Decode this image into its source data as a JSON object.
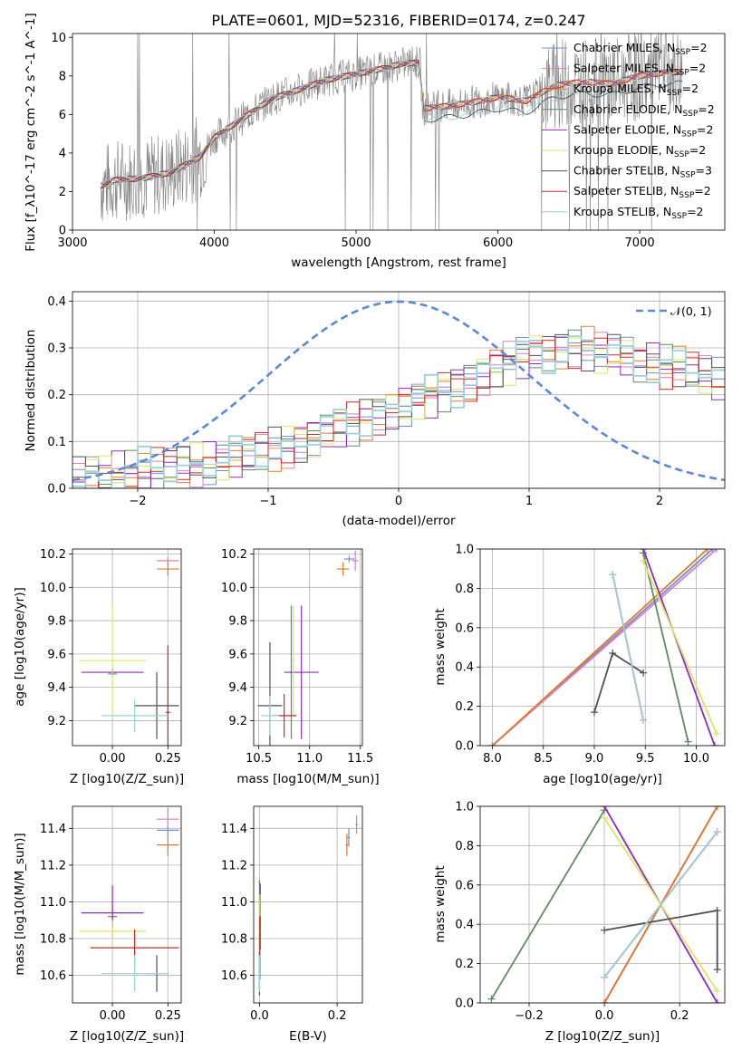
{
  "figure": {
    "title": "PLATE=0601, MJD=52316, FIBERID=0174, z=0.247"
  },
  "colors": {
    "Chabrier MILES": "#6f8fd6",
    "Salpeter MILES": "#d77fc4",
    "Kroupa MILES": "#e07b2a",
    "Chabrier ELODIE": "#5f8a63",
    "Salpeter ELODIE": "#8e2bbd",
    "Kroupa ELODIE": "#dbe565",
    "Chabrier STELIB": "#505050",
    "Salpeter STELIB": "#c82a2a",
    "Kroupa STELIB": "#9ed0dc",
    "gaussian": "#5b87d8"
  },
  "chart_data": [
    {
      "panel": "spectrum",
      "type": "line",
      "xlabel": "wavelength [Angstrom, rest frame]",
      "ylabel": "Flux [f_λ10^-17 erg cm^-2 s^-1 A^-1]",
      "xlim": [
        3000,
        7600
      ],
      "ylim": [
        0,
        10.2
      ],
      "xticks": [
        3000,
        4000,
        5000,
        6000,
        7000
      ],
      "yticks": [
        0,
        2,
        4,
        6,
        8,
        10
      ],
      "grid": false,
      "legend_position": "top-right",
      "legend": [
        {
          "name": "Chabrier MILES",
          "nssp": "2"
        },
        {
          "name": "Salpeter MILES",
          "nssp": "2"
        },
        {
          "name": "Kroupa MILES",
          "nssp": "2"
        },
        {
          "name": "Chabrier ELODIE",
          "nssp": "2"
        },
        {
          "name": "Salpeter ELODIE",
          "nssp": "2"
        },
        {
          "name": "Kroupa ELODIE",
          "nssp": "2"
        },
        {
          "name": "Chabrier STELIB",
          "nssp": "3"
        },
        {
          "name": "Salpeter STELIB",
          "nssp": "2"
        },
        {
          "name": "Kroupa STELIB",
          "nssp": "2"
        }
      ],
      "data_profile": {
        "x": [
          3200,
          3300,
          3500,
          3700,
          3900,
          4000,
          4200,
          4400,
          4600,
          4800,
          5000,
          5200,
          5300,
          5450,
          5470,
          5600,
          5800,
          6000,
          6200,
          6400,
          6600,
          6800,
          7000,
          7200
        ],
        "y": [
          2.3,
          2.6,
          2.7,
          3.0,
          3.8,
          4.8,
          5.8,
          6.8,
          7.3,
          7.8,
          8.1,
          8.4,
          8.6,
          8.7,
          6.3,
          6.4,
          6.6,
          6.9,
          6.7,
          7.5,
          7.7,
          7.6,
          8.0,
          8.2
        ]
      },
      "model_offset_low_group": -0.6
    },
    {
      "panel": "residual-histogram",
      "type": "line",
      "xlabel": "(data-model)/error",
      "ylabel": "Normed distribution",
      "xlim": [
        -2.5,
        2.5
      ],
      "ylim": [
        0,
        0.42
      ],
      "xticks": [
        -2,
        -1,
        0,
        1,
        2
      ],
      "yticks": [
        0.0,
        0.1,
        0.2,
        0.3,
        0.4
      ],
      "grid": true,
      "legend_position": "top-right",
      "legend_label": "N(0,1)",
      "bin_width": 0.1,
      "base_profile": [
        0.02,
        0.025,
        0.03,
        0.032,
        0.035,
        0.04,
        0.04,
        0.045,
        0.05,
        0.05,
        0.055,
        0.06,
        0.065,
        0.07,
        0.08,
        0.085,
        0.09,
        0.1,
        0.11,
        0.12,
        0.13,
        0.14,
        0.15,
        0.16,
        0.17,
        0.18,
        0.19,
        0.2,
        0.21,
        0.22,
        0.23,
        0.245,
        0.26,
        0.27,
        0.28,
        0.29,
        0.29,
        0.3,
        0.3,
        0.3,
        0.29,
        0.29,
        0.28,
        0.27,
        0.27,
        0.26,
        0.26,
        0.25,
        0.24,
        0.23,
        0.22
      ]
    },
    {
      "panel": "age-vs-Z",
      "type": "scatter",
      "xlabel": "Z [log10(Z/Z_sun)]",
      "ylabel": "age [log10(age/yr)]",
      "xlim": [
        -0.18,
        0.31
      ],
      "ylim": [
        9.05,
        10.23
      ],
      "xticks": [
        0.0,
        0.25
      ],
      "yticks": [
        9.2,
        9.4,
        9.6,
        9.8,
        10.0,
        10.2
      ],
      "grid": true,
      "points": [
        {
          "model": "Chabrier MILES",
          "x": 0.0,
          "y": 9.48,
          "xerr": 0.02,
          "yerr": 0.01
        },
        {
          "model": "Salpeter MILES",
          "x": 0.25,
          "y": 10.16,
          "xerr": 0.05,
          "yerr": 0.02
        },
        {
          "model": "Kroupa MILES",
          "x": 0.25,
          "y": 10.11,
          "xerr": 0.05,
          "yerr": 0.04
        },
        {
          "model": "Chabrier ELODIE",
          "x": 0.0,
          "y": 9.49,
          "xerr": 0.02,
          "yerr": 0.03
        },
        {
          "model": "Salpeter ELODIE",
          "x": 0.0,
          "y": 9.49,
          "xerr": 0.14,
          "yerr": 0.02
        },
        {
          "model": "Kroupa ELODIE",
          "x": 0.0,
          "y": 9.56,
          "xerr": 0.15,
          "yerr": 0.33
        },
        {
          "model": "Chabrier STELIB",
          "x": 0.2,
          "y": 9.29,
          "xerr": 0.1,
          "yerr": 0.2
        },
        {
          "model": "Salpeter STELIB",
          "x": 0.25,
          "y": 9.25,
          "xerr": 0.01,
          "yerr": 0.4
        },
        {
          "model": "Kroupa STELIB",
          "x": 0.1,
          "y": 9.23,
          "xerr": 0.15,
          "yerr": 0.1
        }
      ]
    },
    {
      "panel": "age-vs-mass",
      "type": "scatter",
      "xlabel": "mass [log10(M/M_sun)]",
      "ylabel": "",
      "xlim": [
        10.45,
        11.52
      ],
      "ylim": [
        9.05,
        10.23
      ],
      "xticks": [
        10.5,
        11.0,
        11.5
      ],
      "yticks": [
        9.2,
        9.4,
        9.6,
        9.8,
        10.0,
        10.2
      ],
      "grid": true,
      "points": [
        {
          "model": "Chabrier MILES",
          "x": 11.39,
          "y": 10.17,
          "xerr": 0.05,
          "yerr": 0.02
        },
        {
          "model": "Salpeter MILES",
          "x": 11.45,
          "y": 10.16,
          "xerr": 0.03,
          "yerr": 0.06
        },
        {
          "model": "Kroupa MILES",
          "x": 11.33,
          "y": 10.11,
          "xerr": 0.06,
          "yerr": 0.04
        },
        {
          "model": "Chabrier ELODIE",
          "x": 10.82,
          "y": 9.49,
          "xerr": 0.01,
          "yerr": 0.4
        },
        {
          "model": "Salpeter ELODIE",
          "x": 10.92,
          "y": 9.49,
          "xerr": 0.17,
          "yerr": 0.4
        },
        {
          "model": "Kroupa ELODIE",
          "x": 10.84,
          "y": 9.56,
          "xerr": 0.01,
          "yerr": 0.33
        },
        {
          "model": "Chabrier STELIB",
          "x": 10.61,
          "y": 9.29,
          "xerr": 0.12,
          "yerr": 0.38
        },
        {
          "model": "Salpeter STELIB",
          "x": 10.75,
          "y": 9.23,
          "xerr": 0.12,
          "yerr": 0.13
        },
        {
          "model": "Kroupa STELIB",
          "x": 10.61,
          "y": 9.23,
          "xerr": 0.09,
          "yerr": 0.12
        }
      ]
    },
    {
      "panel": "mass-weight-vs-age",
      "type": "line",
      "xlabel": "age [log10(age/yr)]",
      "ylabel": "mass weight",
      "xlim": [
        7.88,
        10.28
      ],
      "ylim": [
        0,
        1
      ],
      "xticks": [
        8.0,
        8.5,
        9.0,
        9.5,
        10.0
      ],
      "yticks": [
        0.0,
        0.2,
        0.4,
        0.6,
        0.8,
        1.0
      ],
      "grid": true,
      "series": [
        {
          "model": "Chabrier MILES",
          "x": [
            8.0,
            10.16
          ],
          "y": [
            0.0,
            1.0
          ]
        },
        {
          "model": "Salpeter MILES",
          "x": [
            8.0,
            10.2
          ],
          "y": [
            0.0,
            1.0
          ]
        },
        {
          "model": "Kroupa MILES",
          "x": [
            8.0,
            10.11
          ],
          "y": [
            0.0,
            1.0
          ]
        },
        {
          "model": "Chabrier ELODIE",
          "x": [
            9.48,
            9.92
          ],
          "y": [
            0.98,
            0.02
          ]
        },
        {
          "model": "Salpeter ELODIE",
          "x": [
            9.48,
            10.18
          ],
          "y": [
            1.0,
            0.0
          ]
        },
        {
          "model": "Kroupa ELODIE",
          "x": [
            9.48,
            10.2
          ],
          "y": [
            0.94,
            0.06
          ]
        },
        {
          "model": "Chabrier STELIB",
          "x": [
            9.0,
            9.18,
            9.48
          ],
          "y": [
            0.17,
            0.47,
            0.37
          ]
        },
        {
          "model": "Salpeter STELIB",
          "x": [
            9.18,
            9.48
          ],
          "y": [
            0.87,
            0.13
          ]
        },
        {
          "model": "Kroupa STELIB",
          "x": [
            9.18,
            9.48
          ],
          "y": [
            0.87,
            0.13
          ]
        }
      ]
    },
    {
      "panel": "mass-vs-Z",
      "type": "scatter",
      "xlabel": "Z [log10(Z/Z_sun)]",
      "ylabel": "mass [log10(M/M_sun)]",
      "xlim": [
        -0.18,
        0.31
      ],
      "ylim": [
        10.45,
        11.52
      ],
      "xticks": [
        0.0,
        0.25
      ],
      "yticks": [
        10.6,
        10.8,
        11.0,
        11.2,
        11.4
      ],
      "grid": true,
      "points": [
        {
          "model": "Chabrier MILES",
          "x": 0.25,
          "y": 11.39,
          "xerr": 0.05,
          "yerr": 0.02
        },
        {
          "model": "Salpeter MILES",
          "x": 0.25,
          "y": 11.45,
          "xerr": 0.05,
          "yerr": 0.06
        },
        {
          "model": "Kroupa MILES",
          "x": 0.25,
          "y": 11.31,
          "xerr": 0.05,
          "yerr": 0.06
        },
        {
          "model": "Chabrier ELODIE",
          "x": 0.0,
          "y": 10.92,
          "xerr": 0.02,
          "yerr": 0.06
        },
        {
          "model": "Salpeter ELODIE",
          "x": 0.0,
          "y": 10.94,
          "xerr": 0.14,
          "yerr": 0.15
        },
        {
          "model": "Kroupa ELODIE",
          "x": 0.0,
          "y": 10.84,
          "xerr": 0.15,
          "yerr": 0.06
        },
        {
          "model": "Chabrier STELIB",
          "x": 0.2,
          "y": 10.61,
          "xerr": 0.05,
          "yerr": 0.1
        },
        {
          "model": "Salpeter STELIB",
          "x": 0.1,
          "y": 10.75,
          "xerr": 0.2,
          "yerr": 0.1
        },
        {
          "model": "Kroupa STELIB",
          "x": 0.1,
          "y": 10.61,
          "xerr": 0.15,
          "yerr": 0.1
        }
      ]
    },
    {
      "panel": "mass-vs-EBV",
      "type": "scatter",
      "xlabel": "E(B-V)",
      "ylabel": "",
      "xlim": [
        -0.015,
        0.265
      ],
      "ylim": [
        10.45,
        11.52
      ],
      "xticks": [
        0.0,
        0.2
      ],
      "yticks": [
        10.6,
        10.8,
        11.0,
        11.2,
        11.4
      ],
      "grid": true,
      "points": [
        {
          "model": "Chabrier MILES",
          "x": 0.23,
          "y": 11.35,
          "xerr": 0.003,
          "yerr": 0.05
        },
        {
          "model": "Salpeter MILES",
          "x": 0.25,
          "y": 11.42,
          "xerr": 0.003,
          "yerr": 0.05
        },
        {
          "model": "Kroupa MILES",
          "x": 0.225,
          "y": 11.31,
          "xerr": 0.003,
          "yerr": 0.06
        },
        {
          "model": "Chabrier ELODIE",
          "x": 0.0,
          "y": 10.82,
          "xerr": 0.002,
          "yerr": 0.3
        },
        {
          "model": "Salpeter ELODIE",
          "x": 0.002,
          "y": 10.92,
          "xerr": 0.002,
          "yerr": 0.18
        },
        {
          "model": "Kroupa ELODIE",
          "x": 0.001,
          "y": 10.84,
          "xerr": 0.002,
          "yerr": 0.2
        },
        {
          "model": "Chabrier STELIB",
          "x": 0.0,
          "y": 10.61,
          "xerr": 0.002,
          "yerr": 0.12
        },
        {
          "model": "Salpeter STELIB",
          "x": 0.001,
          "y": 10.75,
          "xerr": 0.002,
          "yerr": 0.17
        },
        {
          "model": "Kroupa STELIB",
          "x": 0.0,
          "y": 10.61,
          "xerr": 0.002,
          "yerr": 0.1
        }
      ]
    },
    {
      "panel": "mass-weight-vs-Z",
      "type": "line",
      "xlabel": "Z [log10(Z/Z_sun)]",
      "ylabel": "mass weight",
      "xlim": [
        -0.33,
        0.32
      ],
      "ylim": [
        0,
        1
      ],
      "xticks": [
        -0.2,
        0.0,
        0.2
      ],
      "yticks": [
        0.0,
        0.2,
        0.4,
        0.6,
        0.8,
        1.0
      ],
      "grid": true,
      "series": [
        {
          "model": "Chabrier MILES",
          "x": [
            0.0,
            0.3
          ],
          "y": [
            0.0,
            1.0
          ]
        },
        {
          "model": "Salpeter MILES",
          "x": [
            0.0,
            0.3
          ],
          "y": [
            0.0,
            1.0
          ]
        },
        {
          "model": "Kroupa MILES",
          "x": [
            0.0,
            0.3
          ],
          "y": [
            0.0,
            1.0
          ]
        },
        {
          "model": "Chabrier ELODIE",
          "x": [
            -0.3,
            0.0
          ],
          "y": [
            0.02,
            0.98
          ]
        },
        {
          "model": "Salpeter ELODIE",
          "x": [
            0.0,
            0.3
          ],
          "y": [
            1.0,
            0.0
          ]
        },
        {
          "model": "Kroupa ELODIE",
          "x": [
            0.0,
            0.3
          ],
          "y": [
            0.94,
            0.06
          ]
        },
        {
          "model": "Chabrier STELIB",
          "x": [
            0.0,
            0.3,
            0.3
          ],
          "y": [
            0.37,
            0.47,
            0.17
          ]
        },
        {
          "model": "Salpeter STELIB",
          "x": [
            0.0,
            0.3
          ],
          "y": [
            0.13,
            0.87
          ]
        },
        {
          "model": "Kroupa STELIB",
          "x": [
            0.0,
            0.3
          ],
          "y": [
            0.13,
            0.87
          ]
        }
      ]
    }
  ]
}
